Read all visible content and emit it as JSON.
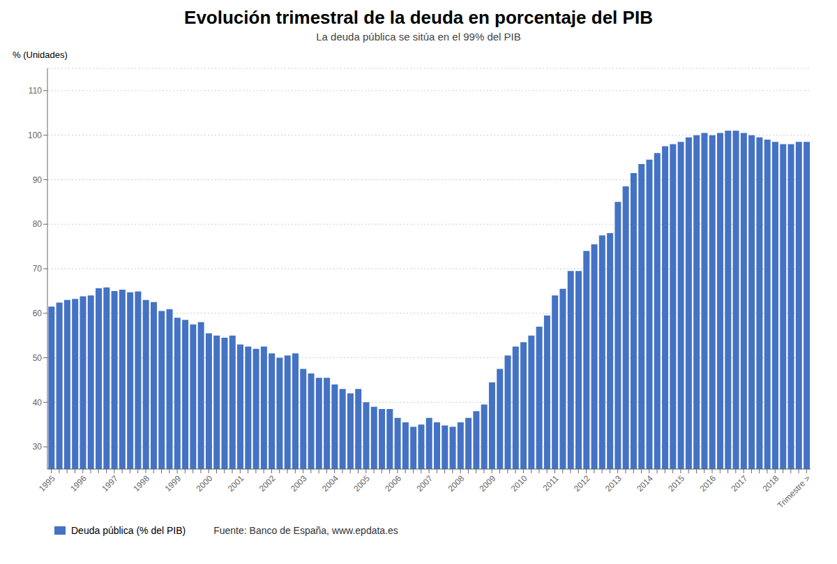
{
  "chart_data": {
    "type": "bar",
    "title": "Evolución trimestral de la deuda en porcentaje del PIB",
    "subtitle": "La deuda pública se sitúa en el 99% del PIB",
    "ylabel": "% (Unidades)",
    "annotations": [
      "Fuente: Banco de España, www.epdata.es"
    ],
    "categories": [
      "1995",
      null,
      null,
      null,
      "1996",
      null,
      null,
      null,
      "1997",
      null,
      null,
      null,
      "1998",
      null,
      null,
      null,
      "1999",
      null,
      null,
      null,
      "2000",
      null,
      null,
      null,
      "2001",
      null,
      null,
      null,
      "2002",
      null,
      null,
      null,
      "2003",
      null,
      null,
      null,
      "2004",
      null,
      null,
      null,
      "2005",
      null,
      null,
      null,
      "2006",
      null,
      null,
      null,
      "2007",
      null,
      null,
      null,
      "2008",
      null,
      null,
      null,
      "2009",
      null,
      null,
      null,
      "2010",
      null,
      null,
      null,
      "2011",
      null,
      null,
      null,
      "2012",
      null,
      null,
      null,
      "2013",
      null,
      null,
      null,
      "2014",
      null,
      null,
      null,
      "2015",
      null,
      null,
      null,
      "2016",
      null,
      null,
      null,
      "2017",
      null,
      null,
      null,
      "2018",
      null,
      null,
      null,
      "Trimestre >"
    ],
    "series": [
      {
        "name": "Deuda pública (% del PIB)",
        "color": "#4472C4",
        "values": [
          61.5,
          62.4,
          63.0,
          63.2,
          63.8,
          64.0,
          65.6,
          65.8,
          65.0,
          65.3,
          64.7,
          64.9,
          63.0,
          62.5,
          60.5,
          60.9,
          59.0,
          58.5,
          57.5,
          58.0,
          55.5,
          55.0,
          54.5,
          55.0,
          53.0,
          52.5,
          52.0,
          52.5,
          51.0,
          50.0,
          50.5,
          51.0,
          47.5,
          46.5,
          45.5,
          45.5,
          44.0,
          43.0,
          42.0,
          43.0,
          40.0,
          39.0,
          38.5,
          38.5,
          36.5,
          35.5,
          34.5,
          35.0,
          36.5,
          35.5,
          34.8,
          34.5,
          35.5,
          36.5,
          38.0,
          39.5,
          44.5,
          47.5,
          50.5,
          52.5,
          53.5,
          55.0,
          57.0,
          59.5,
          64.0,
          65.5,
          69.5,
          69.5,
          74.0,
          75.5,
          77.5,
          78.0,
          85.0,
          88.5,
          91.5,
          93.5,
          94.5,
          96.0,
          97.5,
          98.0,
          98.5,
          99.5,
          100.0,
          100.5,
          100.0,
          100.5,
          101.0,
          101.0,
          100.5,
          100.0,
          99.5,
          99.0,
          98.5,
          98.0,
          98.0,
          98.5,
          98.5
        ]
      }
    ],
    "ylim": [
      25,
      115
    ],
    "yticks": [
      30,
      40,
      50,
      60,
      70,
      80,
      90,
      100,
      110
    ],
    "grid": true,
    "legend": "lower left"
  }
}
